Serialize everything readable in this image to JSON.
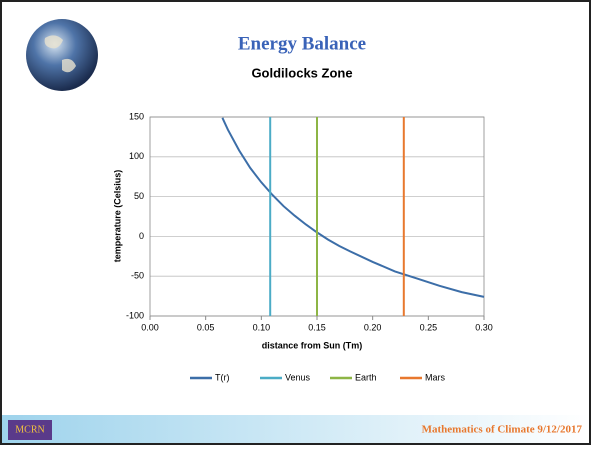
{
  "slide": {
    "title": "Energy Balance",
    "subtitle": "Goldilocks Zone",
    "footer": "Mathematics of Climate  9/12/2017",
    "logo": "MCRN"
  },
  "chart_data": {
    "type": "line",
    "xlabel": "distance from Sun (Tm)",
    "ylabel": "temperature (Celsius)",
    "xlim": [
      0,
      0.3
    ],
    "ylim": [
      -100,
      150
    ],
    "xticks": [
      {
        "value": 0,
        "label": "0.00"
      },
      0.05,
      {
        "value": 0.1,
        "label": "0.10"
      },
      0.15,
      {
        "value": 0.2,
        "label": "0.20"
      },
      0.25,
      {
        "value": 0.3,
        "label": "0.30"
      }
    ],
    "yticks": [
      -100,
      -50,
      0,
      50,
      100,
      150
    ],
    "grid": true,
    "legend": "bottom",
    "series": [
      {
        "name": "T(r)",
        "color": "#3c6ea8",
        "x": [
          0.065,
          0.07,
          0.08,
          0.09,
          0.1,
          0.11,
          0.12,
          0.13,
          0.14,
          0.15,
          0.16,
          0.17,
          0.18,
          0.2,
          0.22,
          0.24,
          0.26,
          0.28,
          0.3
        ],
        "values": [
          149,
          134,
          108,
          86,
          68,
          52,
          38,
          26,
          15,
          5,
          -4,
          -12,
          -19,
          -32,
          -44,
          -53,
          -62,
          -70,
          -76
        ]
      },
      {
        "name": "Venus",
        "color": "#4bacc6",
        "x": [
          0.108,
          0.108
        ],
        "values": [
          -100,
          150
        ]
      },
      {
        "name": "Earth",
        "color": "#8db545",
        "x": [
          0.15,
          0.15
        ],
        "values": [
          -100,
          150
        ]
      },
      {
        "name": "Mars",
        "color": "#e8782e",
        "x": [
          0.228,
          0.228
        ],
        "values": [
          -100,
          150
        ]
      }
    ]
  }
}
